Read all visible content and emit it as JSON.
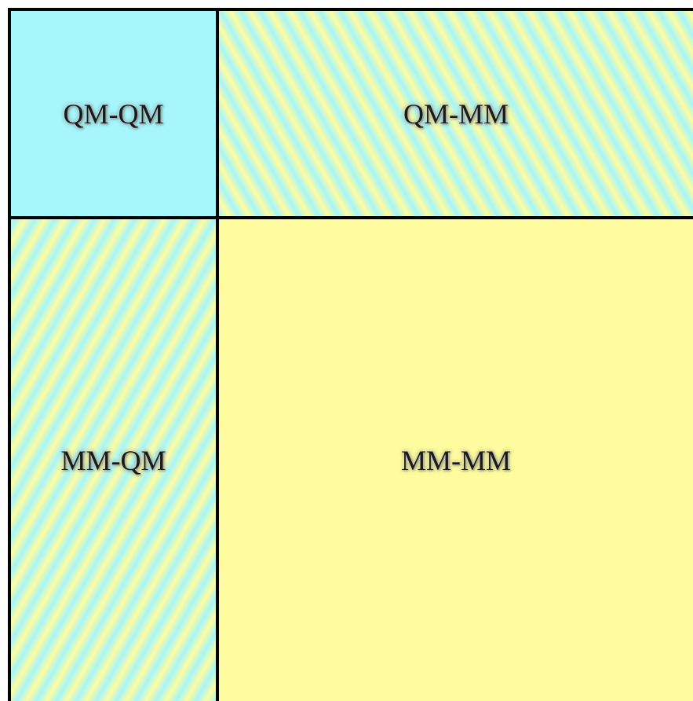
{
  "cells": [
    {
      "label": "QM-QM"
    },
    {
      "label": "QM-MM"
    },
    {
      "label": "MM-QM"
    },
    {
      "label": "MM-MM"
    }
  ],
  "colors": {
    "cyan": "#a6f6fb",
    "yellow": "#fffc9f",
    "border": "#000000"
  }
}
